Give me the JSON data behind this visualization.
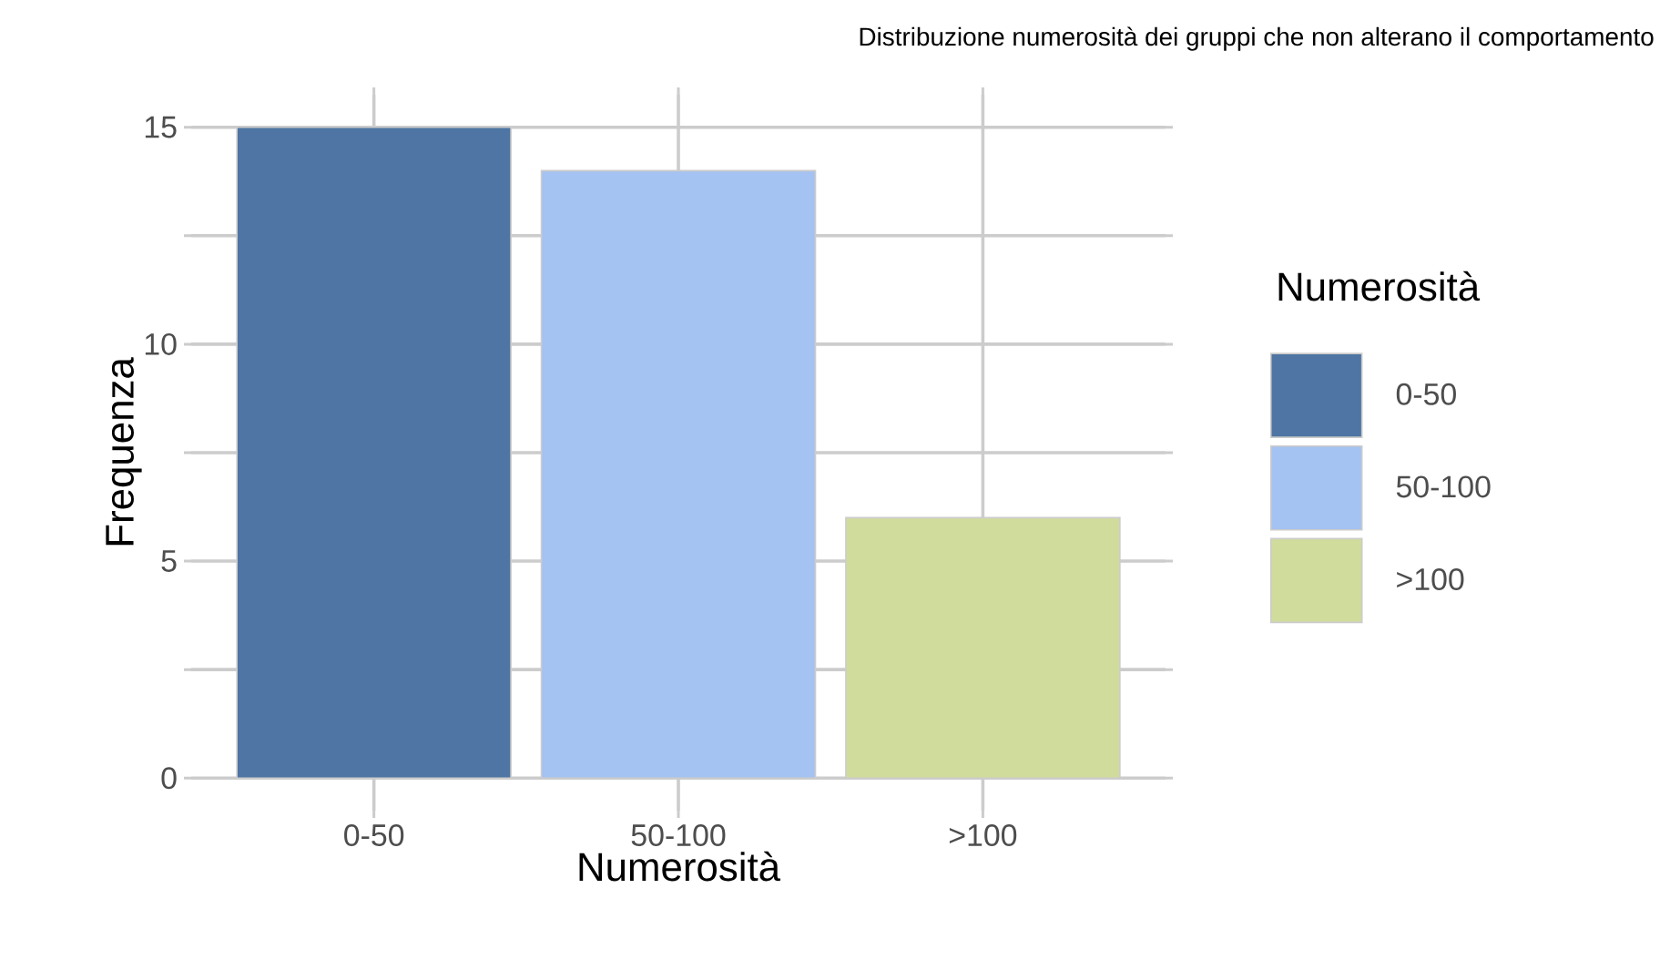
{
  "chart_data": {
    "type": "bar",
    "title": "Distribuzione numerosità dei gruppi che non alterano il comportamento",
    "xlabel": "Numerosità",
    "ylabel": "Frequenza",
    "legend_title": "Numerosità",
    "categories": [
      "0-50",
      "50-100",
      ">100"
    ],
    "series": [
      {
        "name": "0-50",
        "color": "#4e75a3",
        "values": [
          15,
          null,
          null
        ]
      },
      {
        "name": "50-100",
        "color": "#a4c2f2",
        "values": [
          null,
          14,
          null
        ]
      },
      {
        "name": ">100",
        "color": "#d0dc9c",
        "values": [
          null,
          null,
          6
        ]
      }
    ],
    "stacked": true,
    "ylim": [
      -0.75,
      15.75
    ],
    "yticks": [
      0,
      {
        "value": 2.5,
        "label": null
      },
      5,
      {
        "value": 7.5,
        "label": null
      },
      10,
      {
        "value": 12.5,
        "label": null
      },
      15
    ],
    "grid": true,
    "legend": "right"
  }
}
